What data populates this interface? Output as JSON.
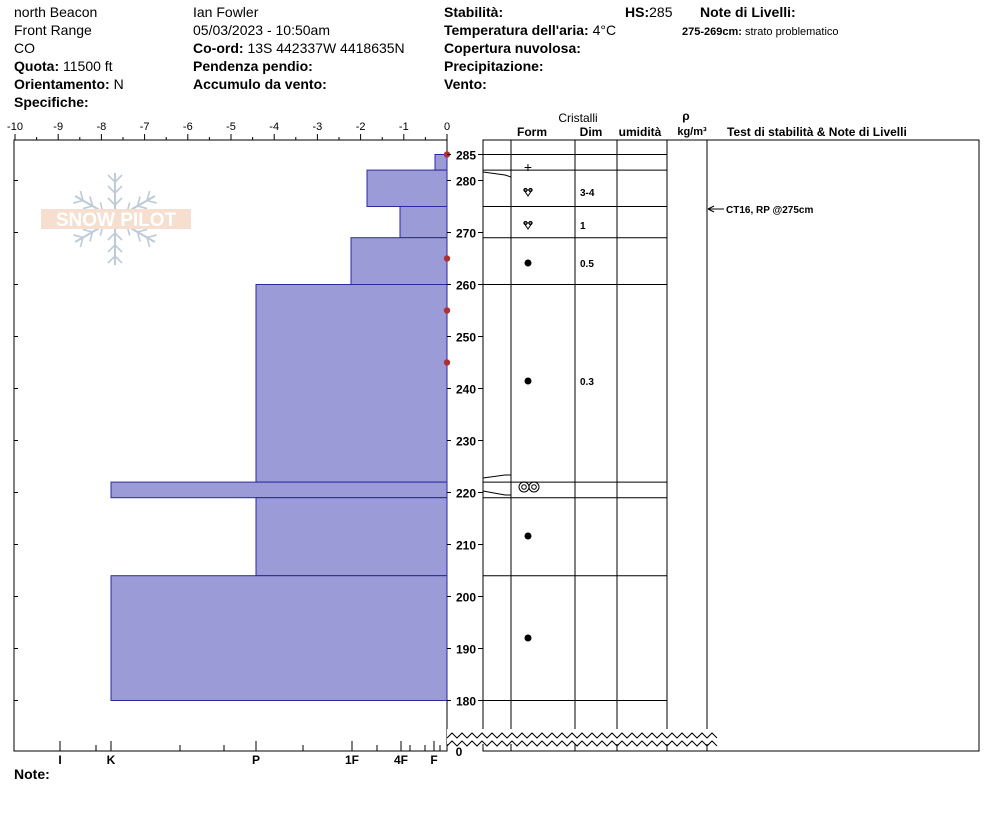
{
  "header": {
    "location": "north Beacon",
    "range": "Front Range",
    "state": "CO",
    "elevation_label": "Quota:",
    "elevation_value": "11500 ft",
    "aspect_label": "Orientamento:",
    "aspect_value": "N",
    "specifics_label": "Specifiche:",
    "observer": "Ian Fowler",
    "datetime": "05/03/2023 - 10:50am",
    "coord_label": "Co-ord:",
    "coord_value": "13S 442337W 4418635N",
    "slope_label": "Pendenza pendio:",
    "wind_loading_label": "Accumulo da vento:",
    "stability_label": "Stabilità:",
    "hs_label": "HS:",
    "hs_value": "285",
    "air_temp_label": "Temperatura dell'aria:",
    "air_temp_value": "4°C",
    "sky_label": "Copertura nuvolosa:",
    "precip_label": "Precipitazione:",
    "wind_label": "Vento:",
    "layer_notes_label": "Note di Livelli:",
    "layer_note_range": "275-269cm:",
    "layer_note_text": "strato problematico",
    "notes_label": "Note:"
  },
  "logo_text": "SNOW PILOT",
  "colors": {
    "hardness_fill": "#9b9bd8",
    "hardness_stroke": "#2a2aa0",
    "temp_marker": "#b03030"
  },
  "chart_data": {
    "type": "snow_profile",
    "temp_axis": {
      "ticks": [
        -10,
        -9,
        -8,
        -7,
        -6,
        -5,
        -4,
        -3,
        -2,
        -1,
        0
      ],
      "range": [
        -10,
        0
      ]
    },
    "hardness_axis": {
      "labels": [
        "I",
        "K",
        "P",
        "1F",
        "4F",
        "F"
      ]
    },
    "depth_ticks": [
      180,
      190,
      200,
      210,
      220,
      230,
      240,
      250,
      260,
      270,
      280,
      285
    ],
    "depth_zero_label": "0",
    "hardness_layers": [
      {
        "top": 285,
        "bottom": 282,
        "hardness": "F"
      },
      {
        "top": 282,
        "bottom": 275,
        "hardness": "4F+"
      },
      {
        "top": 275,
        "bottom": 269,
        "hardness": "4F"
      },
      {
        "top": 269,
        "bottom": 260,
        "hardness": "1F"
      },
      {
        "top": 260,
        "bottom": 222,
        "hardness": "P"
      },
      {
        "top": 222,
        "bottom": 219,
        "hardness": "K"
      },
      {
        "top": 219,
        "bottom": 204,
        "hardness": "P"
      },
      {
        "top": 204,
        "bottom": 180,
        "hardness": "K"
      }
    ],
    "temperature_points": [
      {
        "depth": 285,
        "temp": 0
      },
      {
        "depth": 265,
        "temp": 0
      },
      {
        "depth": 255,
        "temp": 0
      },
      {
        "depth": 245,
        "temp": 0
      }
    ],
    "column_headers": {
      "crystals": "Cristalli",
      "form": "Form",
      "size": "Dim",
      "moisture": "umidità",
      "density_symbol": "ρ",
      "density_unit": "kg/m³",
      "tests": "Test di stabilità & Note di Livelli"
    },
    "layer_boundaries": [
      285,
      282,
      275,
      269,
      260,
      222,
      219,
      204,
      180
    ],
    "crystal_rows": [
      {
        "top": 285,
        "bottom": 282,
        "form_symbol": "+",
        "size": ""
      },
      {
        "top": 282,
        "bottom": 275,
        "form_symbol": "rounding-facet",
        "size": "3-4"
      },
      {
        "top": 275,
        "bottom": 269,
        "form_symbol": "rounding-facet",
        "size": "1"
      },
      {
        "top": 269,
        "bottom": 260,
        "form_symbol": "●",
        "size": "0.5"
      },
      {
        "top": 260,
        "bottom": 222,
        "form_symbol": "●",
        "size": "0.3"
      },
      {
        "top": 222,
        "bottom": 219,
        "form_symbol": "melt-freeze",
        "size": ""
      },
      {
        "top": 219,
        "bottom": 204,
        "form_symbol": "●",
        "size": ""
      },
      {
        "top": 204,
        "bottom": 180,
        "form_symbol": "●",
        "size": ""
      }
    ],
    "stability_tests": [
      {
        "depth": 275,
        "text": "CT16, RP @275cm"
      }
    ]
  }
}
